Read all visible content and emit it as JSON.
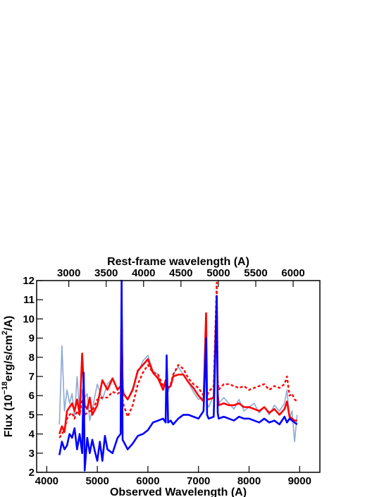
{
  "chart_data": {
    "type": "line",
    "xlabel": "Observed Wavelength (A)",
    "x2label": "Rest-frame wavelength (A)",
    "ylabel": {
      "prefix": "Flux (10",
      "exp1": "−18",
      "mid": "erg/s/cm",
      "exp2": "2",
      "suffix": "/A)"
    },
    "xlim": [
      3800,
      9400
    ],
    "ylim": [
      2,
      12
    ],
    "x_ticks": [
      4000,
      5000,
      6000,
      7000,
      8000,
      9000
    ],
    "y_ticks": [
      2,
      3,
      4,
      5,
      6,
      7,
      8,
      9,
      10,
      11,
      12
    ],
    "x2_ticks": [
      3000,
      3500,
      4000,
      4500,
      5000,
      5500,
      6000
    ],
    "x2_factor": 1.4786,
    "grid": false,
    "series": [
      {
        "style": "band",
        "color": "#7f9fd1",
        "x": [
          4250,
          4300,
          4350,
          4400,
          4450,
          4500,
          4550,
          4600,
          4650,
          4700,
          4750,
          4800,
          4850,
          4900,
          5000,
          5100,
          5200,
          5300,
          5400,
          5460,
          5480,
          5500,
          5520,
          5600,
          5700,
          5800,
          5900,
          6000,
          6100,
          6200,
          6300,
          6350,
          6400,
          6450,
          6500,
          6600,
          6700,
          6800,
          6900,
          7000,
          7100,
          7150,
          7170,
          7200,
          7300,
          7360,
          7380,
          7400,
          7500,
          7600,
          7700,
          7800,
          7900,
          8000,
          8100,
          8200,
          8300,
          8400,
          8500,
          8600,
          8700,
          8750,
          8800,
          8850,
          8900,
          8950
        ],
        "y": [
          4.5,
          8.6,
          5.2,
          6.3,
          5.6,
          6.1,
          4.9,
          7.0,
          5.2,
          6.3,
          5.9,
          6.1,
          4.7,
          5.3,
          6.6,
          5.8,
          6.6,
          6.9,
          6.3,
          6.5,
          11.8,
          7.4,
          6.0,
          5.8,
          6.4,
          7.2,
          7.8,
          8.1,
          7.3,
          7.1,
          6.3,
          6.6,
          6.2,
          6.6,
          7.1,
          7.5,
          7.1,
          6.7,
          6.2,
          5.8,
          5.9,
          10.2,
          5.6,
          5.4,
          6.0,
          11.1,
          6.5,
          5.6,
          5.9,
          5.6,
          5.3,
          5.8,
          5.2,
          5.4,
          5.6,
          5.1,
          5.4,
          5.0,
          5.5,
          5.2,
          5.6,
          6.3,
          4.8,
          5.2,
          3.6,
          5.0
        ]
      },
      {
        "style": "solid",
        "color": "#ff0000",
        "x": [
          4250,
          4300,
          4350,
          4400,
          4450,
          4500,
          4550,
          4600,
          4650,
          4700,
          4750,
          4800,
          4850,
          4900,
          5000,
          5100,
          5200,
          5300,
          5400,
          5460,
          5480,
          5500,
          5520,
          5600,
          5700,
          5800,
          5900,
          6000,
          6100,
          6200,
          6300,
          6350,
          6400,
          6450,
          6500,
          6600,
          6700,
          6800,
          6900,
          7000,
          7100,
          7150,
          7170,
          7200,
          7300,
          7360,
          7380,
          7400,
          7500,
          7600,
          7700,
          7800,
          7900,
          8000,
          8100,
          8200,
          8300,
          8400,
          8500,
          8600,
          8700,
          8750,
          8800,
          8850,
          8900,
          8950
        ],
        "y": [
          4.0,
          4.4,
          4.1,
          5.2,
          5.4,
          5.6,
          5.2,
          5.8,
          5.0,
          8.2,
          5.5,
          5.3,
          5.9,
          5.0,
          5.5,
          6.8,
          6.3,
          6.9,
          6.3,
          6.5,
          10.5,
          6.4,
          6.1,
          5.8,
          6.3,
          7.3,
          7.6,
          7.9,
          7.2,
          6.9,
          6.3,
          6.8,
          6.4,
          6.5,
          7.0,
          7.1,
          7.1,
          6.7,
          6.4,
          6.0,
          5.7,
          10.3,
          5.8,
          5.8,
          5.9,
          11.2,
          6.1,
          5.5,
          5.6,
          5.5,
          5.5,
          5.6,
          5.4,
          5.4,
          5.3,
          5.2,
          5.4,
          5.1,
          5.3,
          5.0,
          5.3,
          5.7,
          4.9,
          4.8,
          4.7,
          4.7
        ]
      },
      {
        "style": "dashed",
        "color": "#ff0000",
        "x": [
          4250,
          4300,
          4350,
          4400,
          4450,
          4500,
          4550,
          4600,
          4650,
          4700,
          4750,
          4800,
          4850,
          4900,
          5000,
          5100,
          5200,
          5300,
          5400,
          5460,
          5480,
          5500,
          5520,
          5600,
          5700,
          5800,
          5900,
          6000,
          6100,
          6200,
          6300,
          6350,
          6400,
          6450,
          6500,
          6600,
          6700,
          6800,
          6900,
          7000,
          7100,
          7150,
          7170,
          7200,
          7300,
          7360,
          7380,
          7400,
          7500,
          7600,
          7700,
          7800,
          7900,
          8000,
          8100,
          8200,
          8300,
          8400,
          8500,
          8600,
          8700,
          8750,
          8800,
          8850,
          8900,
          8950
        ],
        "y": [
          3.8,
          4.0,
          4.2,
          4.8,
          5.0,
          5.1,
          4.8,
          5.2,
          5.0,
          5.8,
          5.0,
          5.1,
          5.2,
          5.2,
          5.8,
          5.9,
          5.9,
          6.2,
          6.1,
          6.2,
          10.8,
          5.8,
          5.5,
          4.9,
          5.5,
          6.6,
          7.2,
          7.6,
          7.2,
          7.1,
          6.5,
          6.6,
          6.4,
          6.6,
          7.1,
          7.6,
          7.4,
          6.9,
          6.6,
          6.4,
          6.0,
          9.0,
          6.0,
          6.2,
          6.5,
          11.9,
          6.8,
          6.3,
          6.6,
          6.6,
          6.5,
          6.4,
          6.5,
          6.3,
          6.4,
          6.5,
          6.6,
          6.3,
          6.5,
          6.4,
          6.6,
          7.0,
          6.0,
          6.1,
          5.8,
          5.7
        ]
      },
      {
        "style": "solid",
        "color": "#0000ff",
        "x": [
          4250,
          4300,
          4350,
          4400,
          4450,
          4500,
          4550,
          4600,
          4650,
          4700,
          4730,
          4750,
          4800,
          4850,
          4900,
          4950,
          5000,
          5050,
          5100,
          5150,
          5200,
          5300,
          5400,
          5460,
          5480,
          5500,
          5520,
          5600,
          5700,
          5800,
          5900,
          6000,
          6100,
          6200,
          6300,
          6350,
          6370,
          6400,
          6450,
          6500,
          6600,
          6700,
          6800,
          6900,
          7000,
          7100,
          7150,
          7170,
          7200,
          7300,
          7360,
          7380,
          7400,
          7500,
          7600,
          7700,
          7800,
          7900,
          8000,
          8100,
          8200,
          8300,
          8400,
          8500,
          8600,
          8700,
          8750,
          8800,
          8850,
          8900,
          8950
        ],
        "y": [
          2.9,
          3.6,
          3.2,
          3.4,
          4.0,
          3.8,
          4.3,
          3.2,
          4.0,
          3.0,
          7.2,
          2.1,
          3.8,
          3.0,
          3.7,
          3.1,
          2.6,
          3.6,
          2.6,
          3.9,
          3.2,
          3.0,
          3.8,
          4.0,
          12.0,
          3.7,
          3.6,
          3.2,
          3.5,
          3.9,
          4.0,
          4.2,
          4.6,
          4.7,
          4.8,
          4.6,
          8.1,
          4.6,
          4.7,
          4.5,
          4.8,
          5.0,
          5.0,
          4.9,
          4.8,
          5.2,
          9.0,
          5.0,
          4.8,
          4.9,
          11.2,
          5.1,
          4.8,
          4.9,
          4.8,
          4.7,
          4.9,
          4.8,
          4.8,
          4.7,
          4.6,
          4.8,
          4.6,
          4.7,
          4.5,
          4.9,
          4.6,
          4.8,
          4.7,
          4.6,
          4.5
        ]
      }
    ]
  }
}
